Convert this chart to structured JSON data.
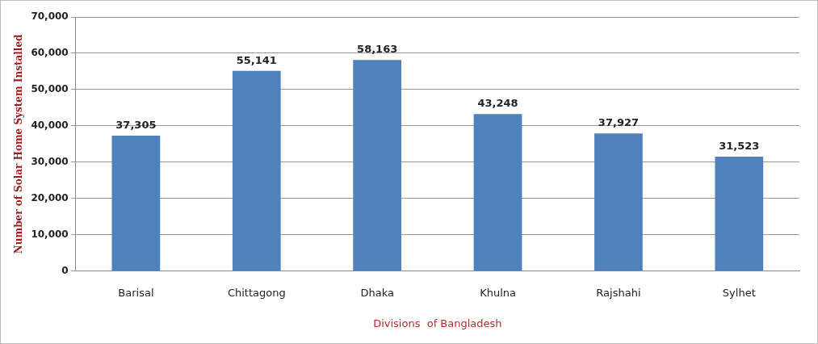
{
  "chart_data": {
    "type": "bar",
    "xlabel": "Divisions  of Bangladesh",
    "ylabel": "Number of Solar Home System Installed",
    "categories": [
      "Barisal",
      "Chittagong",
      "Dhaka",
      "Khulna",
      "Rajshahi",
      "Sylhet"
    ],
    "values": [
      37305,
      55141,
      58163,
      43248,
      37927,
      31523
    ],
    "color": "#4f81bd",
    "ylim": [
      0,
      70000
    ],
    "yticks": [
      {
        "value": 0,
        "label": "0"
      },
      {
        "value": 10000,
        "label": "10,000"
      },
      {
        "value": 20000,
        "label": "20,000"
      },
      {
        "value": 30000,
        "label": "30,000"
      },
      {
        "value": 40000,
        "label": "40,000"
      },
      {
        "value": 50000,
        "label": "50,000"
      },
      {
        "value": 60000,
        "label": "60,000"
      },
      {
        "value": 70000,
        "label": "70,000"
      }
    ],
    "value_labels": [
      "37,305",
      "55,141",
      "58,163",
      "43,248",
      "37,927",
      "31,523"
    ],
    "grid": "y"
  }
}
